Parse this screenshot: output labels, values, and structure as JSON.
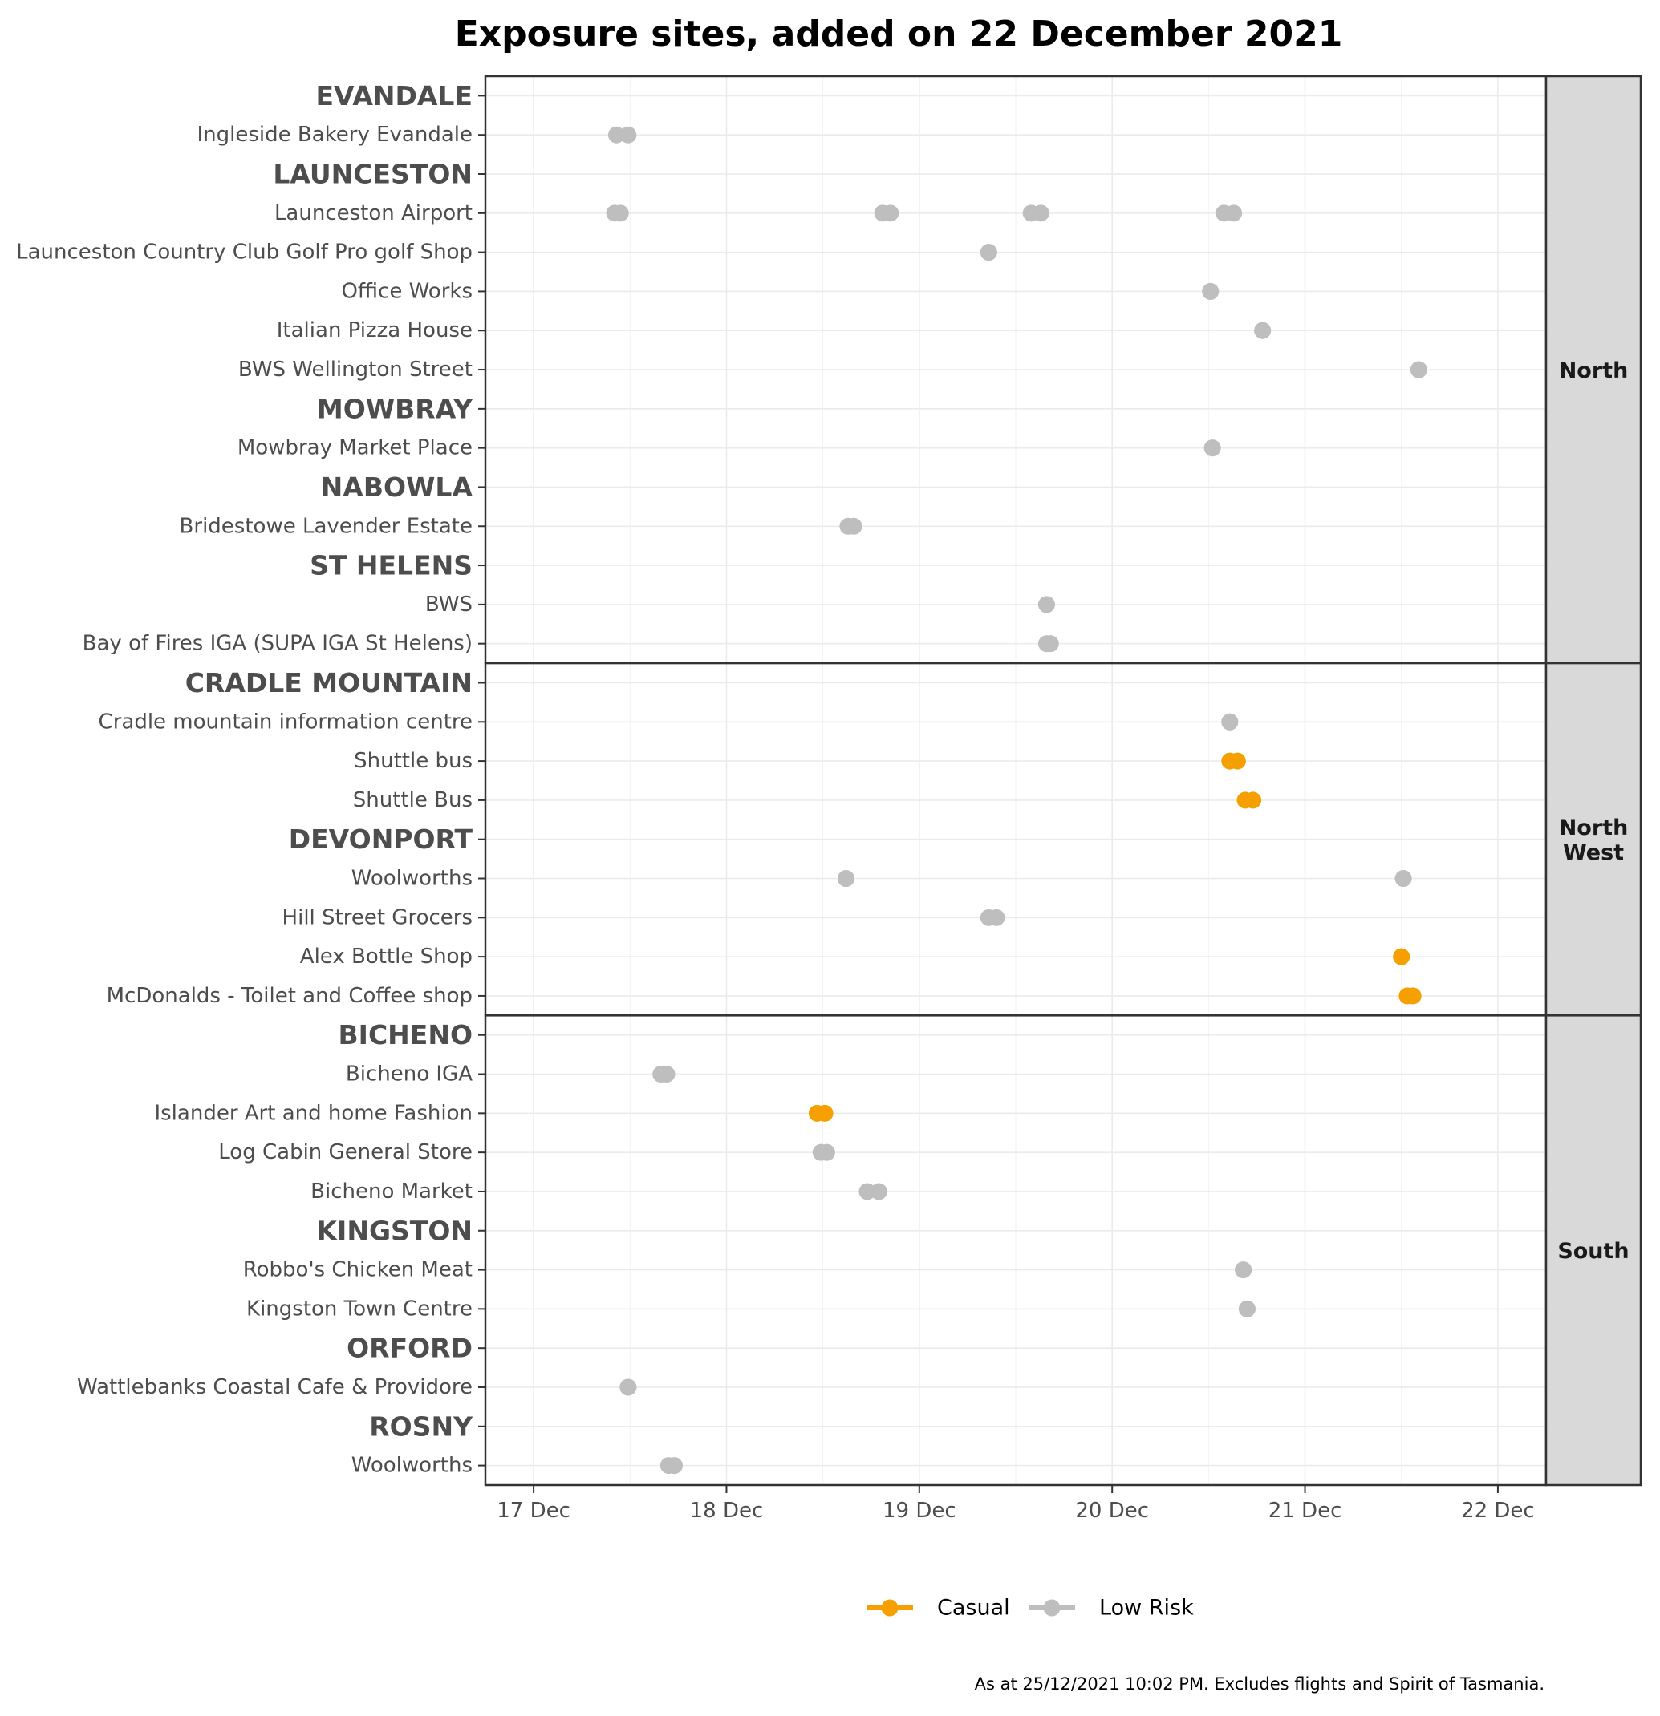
{
  "chart_data": {
    "type": "dumbbell",
    "title": "Exposure sites, added on 22 December 2021",
    "caption": "As at 25/12/2021 10:02 PM. Excludes flights and Spirit of Tasmania.",
    "x_ticks": [
      {
        "label": "17 Dec",
        "value": 17
      },
      {
        "label": "18 Dec",
        "value": 18
      },
      {
        "label": "19 Dec",
        "value": 19
      },
      {
        "label": "20 Dec",
        "value": 20
      },
      {
        "label": "21 Dec",
        "value": 21
      },
      {
        "label": "22 Dec",
        "value": 22
      }
    ],
    "xlim": [
      16.75,
      22.25
    ],
    "legend": {
      "position": "bottom",
      "items": [
        {
          "label": "Casual",
          "color": "#F5A000"
        },
        {
          "label": "Low Risk",
          "color": "#BEBEBE"
        }
      ]
    },
    "colors": {
      "Casual": "#F5A000",
      "Low Risk": "#BEBEBE"
    },
    "panels": [
      {
        "label": "North",
        "rows": [
          {
            "label": "EVANDALE",
            "town": true,
            "sites": []
          },
          {
            "label": "Ingleside Bakery Evandale",
            "sites": [
              {
                "start": 17.43,
                "end": 17.49,
                "risk": "Low Risk"
              }
            ]
          },
          {
            "label": "LAUNCESTON",
            "town": true,
            "sites": []
          },
          {
            "label": "Launceston Airport",
            "sites": [
              {
                "start": 17.42,
                "end": 17.45,
                "risk": "Low Risk"
              },
              {
                "start": 18.81,
                "end": 18.85,
                "risk": "Low Risk"
              },
              {
                "start": 19.58,
                "end": 19.63,
                "risk": "Low Risk"
              },
              {
                "start": 20.58,
                "end": 20.63,
                "risk": "Low Risk"
              }
            ]
          },
          {
            "label": "Launceston Country Club Golf Pro golf Shop",
            "sites": [
              {
                "start": 19.36,
                "end": 19.36,
                "risk": "Low Risk"
              }
            ]
          },
          {
            "label": "Office Works",
            "sites": [
              {
                "start": 20.51,
                "end": 20.51,
                "risk": "Low Risk"
              }
            ]
          },
          {
            "label": "Italian Pizza House",
            "sites": [
              {
                "start": 20.78,
                "end": 20.78,
                "risk": "Low Risk"
              }
            ]
          },
          {
            "label": "BWS Wellington Street",
            "sites": [
              {
                "start": 21.59,
                "end": 21.59,
                "risk": "Low Risk"
              }
            ]
          },
          {
            "label": "MOWBRAY",
            "town": true,
            "sites": []
          },
          {
            "label": "Mowbray Market Place",
            "sites": [
              {
                "start": 20.52,
                "end": 20.52,
                "risk": "Low Risk"
              }
            ]
          },
          {
            "label": "NABOWLA",
            "town": true,
            "sites": []
          },
          {
            "label": "Bridestowe Lavender Estate",
            "sites": [
              {
                "start": 18.63,
                "end": 18.66,
                "risk": "Low Risk"
              }
            ]
          },
          {
            "label": "ST HELENS",
            "town": true,
            "sites": []
          },
          {
            "label": "BWS",
            "sites": [
              {
                "start": 19.66,
                "end": 19.66,
                "risk": "Low Risk"
              }
            ]
          },
          {
            "label": "Bay of Fires IGA (SUPA IGA St Helens)",
            "sites": [
              {
                "start": 19.66,
                "end": 19.68,
                "risk": "Low Risk"
              }
            ]
          }
        ]
      },
      {
        "label": "North West",
        "rows": [
          {
            "label": "CRADLE MOUNTAIN",
            "town": true,
            "sites": []
          },
          {
            "label": "Cradle mountain information centre",
            "sites": [
              {
                "start": 20.61,
                "end": 20.61,
                "risk": "Low Risk"
              }
            ]
          },
          {
            "label": "Shuttle bus",
            "sites": [
              {
                "start": 20.61,
                "end": 20.65,
                "risk": "Casual"
              }
            ]
          },
          {
            "label": "Shuttle Bus",
            "sites": [
              {
                "start": 20.69,
                "end": 20.73,
                "risk": "Casual"
              }
            ]
          },
          {
            "label": "DEVONPORT",
            "town": true,
            "sites": []
          },
          {
            "label": "Woolworths",
            "sites": [
              {
                "start": 18.62,
                "end": 18.62,
                "risk": "Low Risk"
              },
              {
                "start": 21.51,
                "end": 21.51,
                "risk": "Low Risk"
              }
            ]
          },
          {
            "label": "Hill Street Grocers",
            "sites": [
              {
                "start": 19.36,
                "end": 19.4,
                "risk": "Low Risk"
              }
            ]
          },
          {
            "label": "Alex Bottle Shop",
            "sites": [
              {
                "start": 21.5,
                "end": 21.5,
                "risk": "Casual"
              }
            ]
          },
          {
            "label": "McDonalds - Toilet and Coffee shop",
            "sites": [
              {
                "start": 21.53,
                "end": 21.56,
                "risk": "Casual"
              }
            ]
          }
        ]
      },
      {
        "label": "South",
        "rows": [
          {
            "label": "BICHENO",
            "town": true,
            "sites": []
          },
          {
            "label": "Bicheno IGA",
            "sites": [
              {
                "start": 17.66,
                "end": 17.69,
                "risk": "Low Risk"
              }
            ]
          },
          {
            "label": "Islander Art and home Fashion",
            "sites": [
              {
                "start": 18.47,
                "end": 18.51,
                "risk": "Casual"
              }
            ]
          },
          {
            "label": "Log Cabin General Store",
            "sites": [
              {
                "start": 18.49,
                "end": 18.52,
                "risk": "Low Risk"
              }
            ]
          },
          {
            "label": "Bicheno Market",
            "sites": [
              {
                "start": 18.73,
                "end": 18.79,
                "risk": "Low Risk"
              }
            ]
          },
          {
            "label": "KINGSTON",
            "town": true,
            "sites": []
          },
          {
            "label": "Robbo's Chicken Meat",
            "sites": [
              {
                "start": 20.68,
                "end": 20.68,
                "risk": "Low Risk"
              }
            ]
          },
          {
            "label": "Kingston Town Centre",
            "sites": [
              {
                "start": 20.7,
                "end": 20.7,
                "risk": "Low Risk"
              }
            ]
          },
          {
            "label": "ORFORD",
            "town": true,
            "sites": []
          },
          {
            "label": "Wattlebanks Coastal Cafe & Providore",
            "sites": [
              {
                "start": 17.49,
                "end": 17.49,
                "risk": "Low Risk"
              }
            ]
          },
          {
            "label": "ROSNY",
            "town": true,
            "sites": []
          },
          {
            "label": "Woolworths",
            "sites": [
              {
                "start": 17.7,
                "end": 17.73,
                "risk": "Low Risk"
              }
            ]
          }
        ]
      }
    ]
  }
}
